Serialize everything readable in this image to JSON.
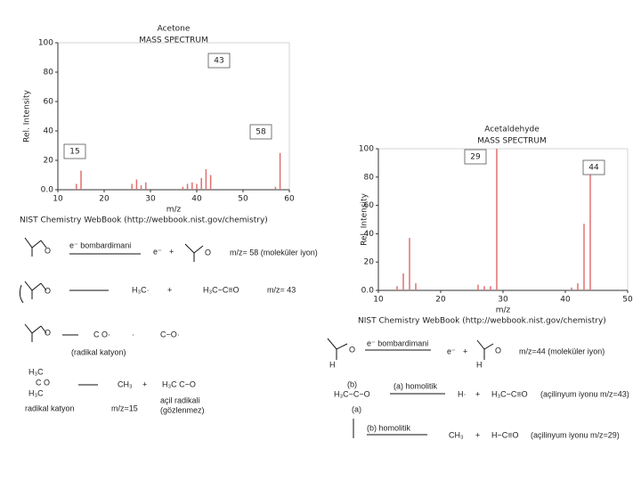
{
  "chart_data": [
    {
      "type": "bar",
      "title": "Acetone",
      "subtitle": "MASS SPECTRUM",
      "x_label": "m/z",
      "y_label": "Rel. Intensity",
      "footer": "NIST Chemistry WebBook (http://webbook.nist.gov/chemistry)",
      "x": [
        14,
        15,
        26,
        27,
        28,
        29,
        37,
        38,
        39,
        40,
        41,
        42,
        43,
        57,
        58
      ],
      "values": [
        4,
        13,
        4,
        7,
        3,
        5,
        2,
        4,
        5,
        4,
        8,
        14,
        10,
        2,
        25
      ],
      "color": "#e07070",
      "xlim": [
        10,
        60
      ],
      "xticks": [
        10,
        20,
        30,
        40,
        50,
        60
      ],
      "ylim": [
        0,
        100
      ],
      "yticks": [
        {
          "value": 0,
          "label": "0.0"
        },
        20,
        40,
        60,
        80,
        100
      ],
      "annotations": [
        "43",
        "58",
        "15"
      ]
    },
    {
      "type": "bar",
      "title": "Acetaldehyde",
      "subtitle": "MASS SPECTRUM",
      "x_label": "m/z",
      "y_label": "Rel. Intensity",
      "footer": "NIST Chemistry WebBook (http://webbook.nist.gov/chemistry)",
      "x": [
        13,
        14,
        15,
        16,
        26,
        27,
        28,
        29,
        41,
        42,
        43,
        44
      ],
      "values": [
        3,
        12,
        37,
        5,
        4,
        3,
        3,
        100,
        2,
        5,
        47,
        85
      ],
      "color": "#e07070",
      "xlim": [
        10,
        50
      ],
      "xticks": [
        10,
        20,
        30,
        40,
        50
      ],
      "ylim": [
        0,
        100
      ],
      "yticks": [
        {
          "value": 0,
          "label": "0.0"
        },
        20,
        40,
        60,
        80,
        100
      ],
      "annotations": [
        "29",
        "44"
      ]
    }
  ],
  "left_scheme": [
    "e⁻ bombardimani",
    "e⁻",
    "+",
    "O",
    "m/z= 58 (moleküler iyon)",
    "H₃C·",
    "+",
    "H₃C−C≡O",
    "m/z= 43",
    "(radikal katyon)",
    "CH₃",
    "+",
    "H₃C  C−O",
    "radikal katyon",
    "m/z=15",
    "açil radikali",
    "(gözlenmez)"
  ],
  "right_scheme": [
    "e⁻ bombardimani",
    "e⁻",
    "+",
    "O",
    "m/z=44 (moleküler iyon)",
    "(b)",
    "(a) homolitik",
    "H·",
    "+",
    "H₃C−C≡O",
    "(açilinyum iyonu m/z=43)",
    "(a)",
    "(b) homolitik",
    "CH₃",
    "+",
    "H−C≡O",
    "(açilinyum iyonu m/z=29)"
  ]
}
